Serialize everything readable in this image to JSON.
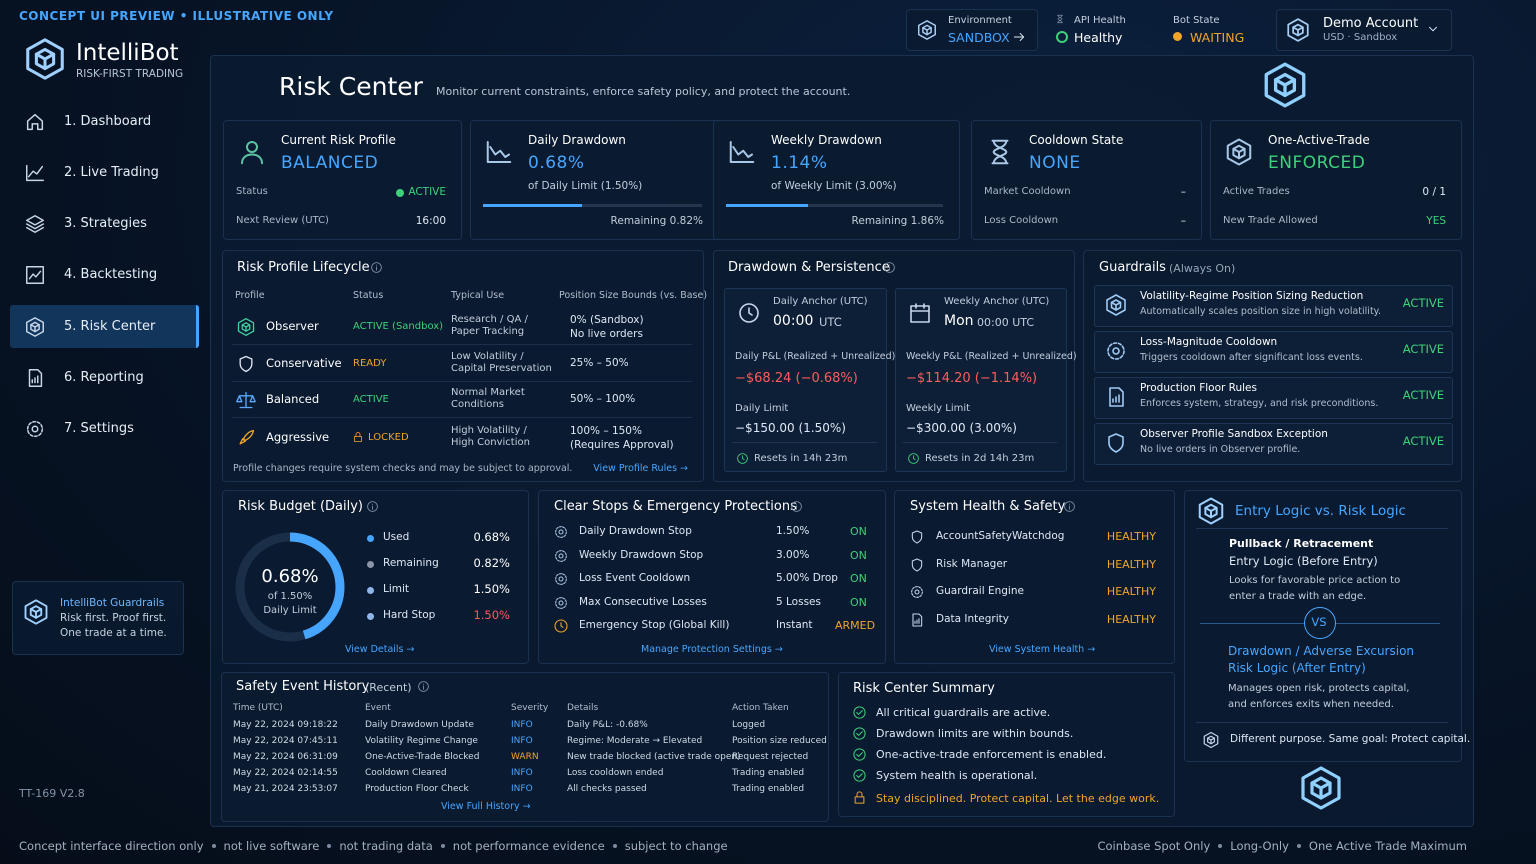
{
  "banner": "CONCEPT UI PREVIEW • ILLUSTRATIVE ONLY",
  "brand": {
    "name": "IntelliBot",
    "tagline": "RISK-FIRST TRADING"
  },
  "nav": [
    "1. Dashboard",
    "2. Live Trading",
    "3. Strategies",
    "4. Backtesting",
    "5. Risk Center",
    "6. Reporting",
    "7. Settings"
  ],
  "nav_active": 4,
  "side_card": {
    "title": "IntelliBot Guardrails",
    "lines": [
      "Risk first. Proof first.",
      "One trade at a time."
    ]
  },
  "version": "TT-169 V2.8",
  "topbar": {
    "environment": {
      "label": "Environment",
      "value": "SANDBOX"
    },
    "api": {
      "label": "API Health",
      "value": "Healthy"
    },
    "bot": {
      "label": "Bot State",
      "value": "WAITING"
    },
    "account": {
      "name": "Demo Account",
      "sub": "USD · Sandbox"
    }
  },
  "header": {
    "title": "Risk Center",
    "subtitle": "Monitor current constraints, enforce safety policy, and protect the account."
  },
  "kpis": [
    {
      "title": "Current Risk Profile",
      "value": "BALANCED",
      "rows": [
        [
          "Status",
          "ACTIVE"
        ],
        [
          "Next Review (UTC)",
          "16:00"
        ]
      ]
    },
    {
      "title": "Daily Drawdown",
      "value": "0.68%",
      "note": "of Daily Limit (1.50%)",
      "progress": 0.68,
      "progress_max": 1.5,
      "remaining": "Remaining 0.82%"
    },
    {
      "title": "Weekly Drawdown",
      "value": "1.14%",
      "note": "of Weekly Limit (3.00%)",
      "progress": 1.14,
      "progress_max": 3,
      "remaining": "Remaining 1.86%"
    },
    {
      "title": "Cooldown State",
      "value": "NONE",
      "rows": [
        [
          "Market Cooldown",
          "–"
        ],
        [
          "Loss Cooldown",
          "–"
        ]
      ]
    },
    {
      "title": "One-Active-Trade",
      "value": "ENFORCED",
      "rows": [
        [
          "Active Trades",
          "0 / 1"
        ],
        [
          "New Trade Allowed",
          "YES"
        ]
      ]
    }
  ],
  "lifecycle": {
    "title": "Risk Profile Lifecycle",
    "columns": [
      "Profile",
      "Status",
      "Typical Use",
      "Position Size Bounds (vs. Base)"
    ],
    "rows": [
      {
        "name": "Observer",
        "status": "ACTIVE (Sandbox)",
        "use": [
          "Research / QA /",
          "Paper Tracking"
        ],
        "bounds": [
          "0% (Sandbox)",
          "No live orders"
        ]
      },
      {
        "name": "Conservative",
        "status": "READY",
        "use": [
          "Low Volatility /",
          "Capital Preservation"
        ],
        "bounds": [
          "25% – 50%"
        ]
      },
      {
        "name": "Balanced",
        "status": "ACTIVE",
        "use": [
          "Normal Market",
          "Conditions"
        ],
        "bounds": [
          "50% – 100%"
        ]
      },
      {
        "name": "Aggressive",
        "status": "LOCKED",
        "use": [
          "High Volatility /",
          "High Conviction"
        ],
        "bounds": [
          "100% – 150%",
          "(Requires Approval)"
        ]
      }
    ],
    "footer": "Profile changes require system checks and may be subject to approval.",
    "link": "View Profile Rules →"
  },
  "drawdown": {
    "title": "Drawdown & Persistence",
    "cards": [
      {
        "label": "Daily Anchor (UTC)",
        "value": "00:00",
        "unit": "UTC",
        "pnl_label": "Daily P&L (Realized + Unrealized)",
        "pnl": "−$68.24 (−0.68%)",
        "limit_label": "Daily Limit",
        "limit": "−$150.00 (1.50%)",
        "reset": "Resets in 14h 23m"
      },
      {
        "label": "Weekly Anchor (UTC)",
        "value": "Mon",
        "unit": "00:00 UTC",
        "pnl_label": "Weekly P&L (Realized + Unrealized)",
        "pnl": "−$114.20 (−1.14%)",
        "limit_label": "Weekly Limit",
        "limit": "−$300.00 (3.00%)",
        "reset": "Resets in 2d 14h 23m"
      }
    ]
  },
  "guardrails": {
    "title": "Guardrails",
    "note": "(Always On)",
    "items": [
      {
        "name": "Volatility-Regime Position Sizing Reduction",
        "desc": "Automatically scales position size in high volatility.",
        "status": "ACTIVE"
      },
      {
        "name": "Loss-Magnitude Cooldown",
        "desc": "Triggers cooldown after significant loss events.",
        "status": "ACTIVE"
      },
      {
        "name": "Production Floor Rules",
        "desc": "Enforces system, strategy, and risk preconditions.",
        "status": "ACTIVE"
      },
      {
        "name": "Observer Profile Sandbox Exception",
        "desc": "No live orders in Observer profile.",
        "status": "ACTIVE"
      }
    ]
  },
  "budget": {
    "title": "Risk Budget (Daily)",
    "gauge": {
      "label": "0.68%",
      "sub": [
        "of 1.50%",
        "Daily Limit"
      ],
      "value": 0.68,
      "max": 1.5
    },
    "rows": [
      [
        "Used",
        "0.68%"
      ],
      [
        "Remaining",
        "0.82%"
      ],
      [
        "Limit",
        "1.50%"
      ],
      [
        "Hard Stop",
        "1.50%"
      ]
    ],
    "link": "View Details →"
  },
  "stops": {
    "title": "Clear Stops & Emergency Protections",
    "rows": [
      [
        "Daily Drawdown Stop",
        "1.50%",
        "ON"
      ],
      [
        "Weekly Drawdown Stop",
        "3.00%",
        "ON"
      ],
      [
        "Loss Event Cooldown",
        "5.00% Drop",
        "ON"
      ],
      [
        "Max Consecutive Losses",
        "5 Losses",
        "ON"
      ],
      [
        "Emergency Stop (Global Kill)",
        "Instant",
        "ARMED"
      ]
    ],
    "link": "Manage Protection Settings →"
  },
  "health": {
    "title": "System Health & Safety",
    "rows": [
      [
        "AccountSafetyWatchdog",
        "HEALTHY"
      ],
      [
        "Risk Manager",
        "HEALTHY"
      ],
      [
        "Guardrail Engine",
        "HEALTHY"
      ],
      [
        "Data Integrity",
        "HEALTHY"
      ]
    ],
    "link": "View System Health →"
  },
  "logic": {
    "title": "Entry Logic vs. Risk Logic",
    "entry": {
      "heading": "Pullback / Retracement",
      "sub": "Entry Logic (Before Entry)",
      "desc": "Looks for favorable price action to enter a trade with an edge."
    },
    "vs": "VS",
    "risk": {
      "heading": "Drawdown / Adverse Excursion",
      "sub": "Risk Logic (After Entry)",
      "desc": "Manages open risk, protects capital, and enforces exits when needed."
    },
    "footer": "Different purpose. Same goal: Protect capital."
  },
  "history": {
    "title": "Safety Event History",
    "note": "(Recent)",
    "columns": [
      "Time (UTC)",
      "Event",
      "Severity",
      "Details",
      "Action Taken"
    ],
    "rows": [
      [
        "May 22, 2024 09:18:22",
        "Daily Drawdown Update",
        "INFO",
        "Daily P&L: -0.68%",
        "Logged"
      ],
      [
        "May 22, 2024 07:45:11",
        "Volatility Regime Change",
        "INFO",
        "Regime: Moderate → Elevated",
        "Position size reduced"
      ],
      [
        "May 22, 2024 06:31:09",
        "One-Active-Trade Blocked",
        "WARN",
        "New trade blocked (active trade open)",
        "Request rejected"
      ],
      [
        "May 22, 2024 02:14:55",
        "Cooldown Cleared",
        "INFO",
        "Loss cooldown ended",
        "Trading enabled"
      ],
      [
        "May 21, 2024 23:53:07",
        "Production Floor Check",
        "INFO",
        "All checks passed",
        "Trading enabled"
      ]
    ],
    "link": "View Full History →"
  },
  "summary": {
    "title": "Risk Center Summary",
    "items": [
      "All critical guardrails are active.",
      "Drawdown limits are within bounds.",
      "One-active-trade enforcement is enabled.",
      "System health is operational."
    ],
    "motto": "Stay disciplined. Protect capital. Let the edge work."
  },
  "footer": {
    "left": [
      "Concept interface direction only",
      "not live software",
      "not trading data",
      "not performance evidence",
      "subject to change"
    ],
    "right": [
      "Coinbase Spot Only",
      "Long-Only",
      "One Active Trade Maximum"
    ]
  }
}
